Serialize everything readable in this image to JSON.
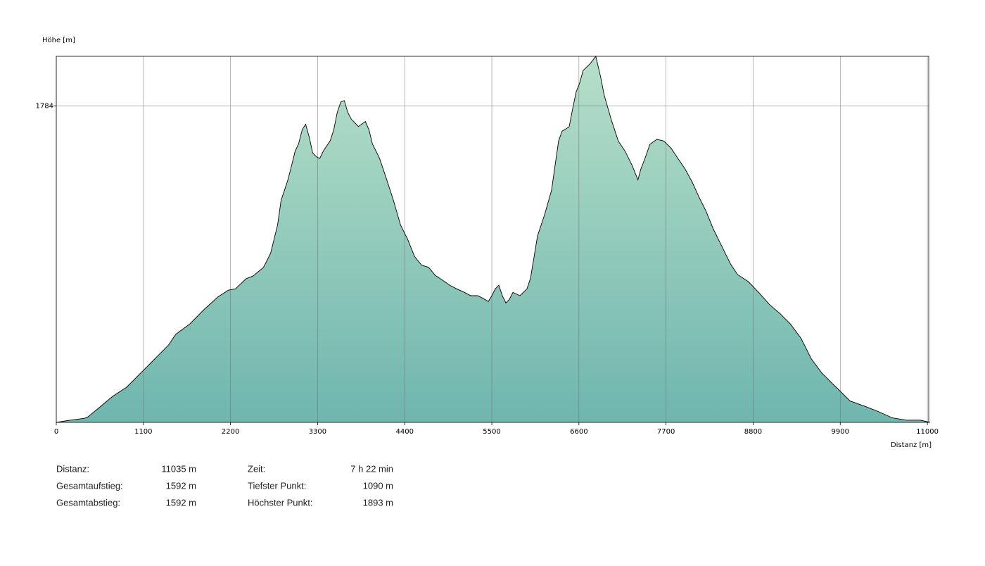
{
  "chart_data": {
    "type": "area",
    "y_label": "Höhe [m]",
    "x_label": "Distanz [m]",
    "xlim": [
      0,
      11035
    ],
    "ylim": [
      1090,
      1893
    ],
    "xticks": [
      0,
      1100,
      2200,
      3300,
      4400,
      5500,
      6600,
      7700,
      8800,
      9900,
      11000
    ],
    "yticks": [
      1784
    ],
    "grid": true,
    "line_color": "#000000",
    "fill_top": "#b6dfc9",
    "fill_bottom": "#6fb6ae",
    "x": [
      0,
      177,
      355,
      399,
      532,
      710,
      887,
      1064,
      1242,
      1419,
      1508,
      1686,
      1863,
      2040,
      2173,
      2262,
      2395,
      2484,
      2617,
      2706,
      2794,
      2839,
      2883,
      2927,
      2972,
      3016,
      3060,
      3105,
      3149,
      3194,
      3238,
      3282,
      3327,
      3371,
      3460,
      3504,
      3548,
      3593,
      3637,
      3681,
      3726,
      3815,
      3903,
      3948,
      3992,
      4081,
      4170,
      4258,
      4347,
      4436,
      4524,
      4613,
      4702,
      4790,
      4879,
      4968,
      5056,
      5145,
      5234,
      5323,
      5411,
      5456,
      5500,
      5544,
      5589,
      5633,
      5677,
      5722,
      5766,
      5855,
      5944,
      5988,
      6077,
      6165,
      6254,
      6343,
      6387,
      6476,
      6520,
      6565,
      6609,
      6653,
      6742,
      6813,
      6875,
      6919,
      7008,
      7097,
      7185,
      7274,
      7345,
      7381,
      7434,
      7496,
      7585,
      7673,
      7762,
      7851,
      7940,
      8028,
      8117,
      8206,
      8295,
      8383,
      8516,
      8605,
      8738,
      8871,
      9004,
      9137,
      9270,
      9403,
      9536,
      9669,
      9802,
      9891,
      10024,
      10202,
      10379,
      10556,
      10734,
      10911,
      11035
    ],
    "values": [
      1090,
      1095,
      1099,
      1102,
      1121,
      1147,
      1167,
      1198,
      1229,
      1260,
      1283,
      1306,
      1337,
      1365,
      1380,
      1383,
      1405,
      1411,
      1430,
      1461,
      1523,
      1577,
      1600,
      1623,
      1654,
      1685,
      1701,
      1732,
      1744,
      1716,
      1681,
      1673,
      1669,
      1685,
      1708,
      1732,
      1770,
      1793,
      1796,
      1770,
      1755,
      1739,
      1750,
      1732,
      1701,
      1670,
      1624,
      1577,
      1523,
      1492,
      1454,
      1435,
      1430,
      1412,
      1402,
      1391,
      1383,
      1376,
      1368,
      1368,
      1360,
      1355,
      1368,
      1383,
      1391,
      1368,
      1352,
      1360,
      1375,
      1368,
      1383,
      1406,
      1499,
      1545,
      1599,
      1707,
      1729,
      1738,
      1777,
      1815,
      1834,
      1862,
      1877,
      1893,
      1847,
      1808,
      1754,
      1707,
      1684,
      1653,
      1622,
      1645,
      1669,
      1700,
      1711,
      1707,
      1692,
      1669,
      1646,
      1618,
      1584,
      1553,
      1515,
      1484,
      1437,
      1414,
      1399,
      1375,
      1349,
      1329,
      1306,
      1275,
      1229,
      1198,
      1175,
      1160,
      1137,
      1126,
      1114,
      1100,
      1095,
      1095,
      1090
    ]
  },
  "stats": [
    [
      {
        "label": "Distanz:",
        "value": "11035 m"
      },
      {
        "label": "Zeit:",
        "value": "7 h 22 min"
      }
    ],
    [
      {
        "label": "Gesamtaufstieg:",
        "value": "1592 m"
      },
      {
        "label": "Tiefster Punkt:",
        "value": "1090 m"
      }
    ],
    [
      {
        "label": "Gesamtabstieg:",
        "value": "1592 m"
      },
      {
        "label": "Höchster Punkt:",
        "value": "1893 m"
      }
    ]
  ]
}
